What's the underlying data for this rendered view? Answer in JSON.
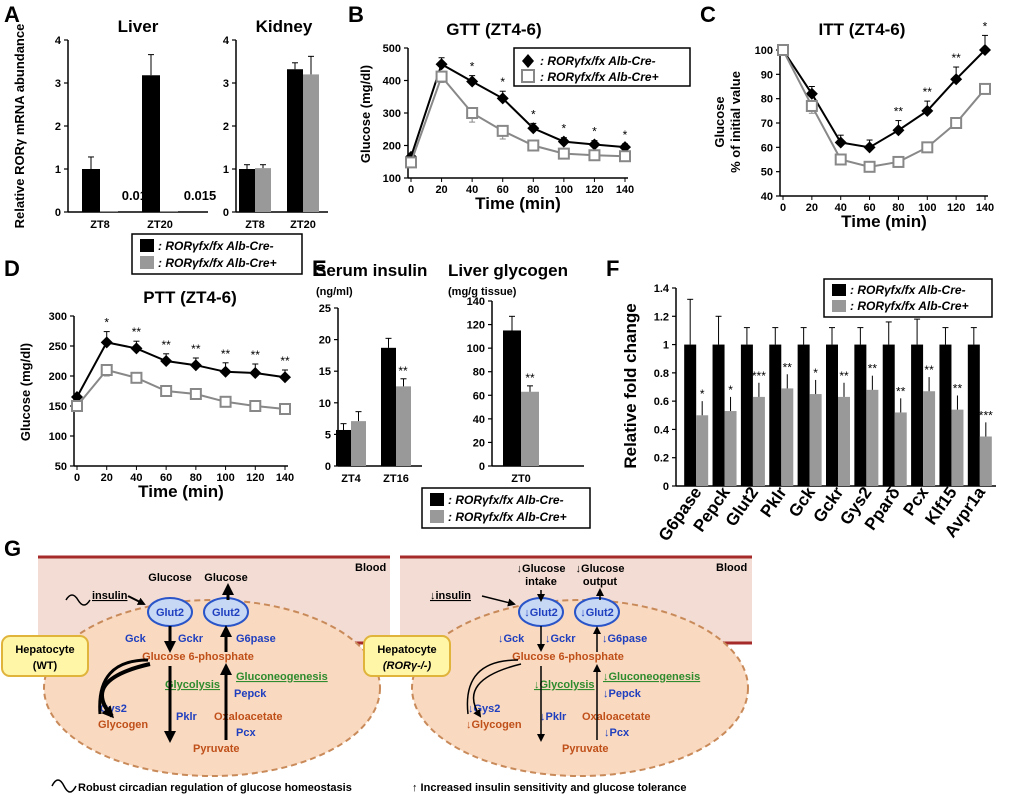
{
  "colors": {
    "wt": "#000000",
    "ko": "#999999",
    "blood": "#f3dcd3",
    "blood_line": "#a52a2a",
    "cell": "#f9d9bf",
    "glut2": "#c6d8f4",
    "hep_box": "#fff6a8",
    "blue": "#1f3fbf",
    "orange": "#c0501a",
    "green": "#2e8b2e"
  },
  "panel_labels": {
    "A": "A",
    "B": "B",
    "C": "C",
    "D": "D",
    "E": "E",
    "F": "F",
    "G": "G"
  },
  "legend": {
    "wt": ": RORγfx/fx Alb-Cre-",
    "ko": ": RORγfx/fx Alb-Cre+"
  },
  "chart_data": [
    {
      "id": "A-liver",
      "type": "bar",
      "title": "Liver",
      "ylabel": "Relative RORγ mRNA abundance",
      "categories": [
        "ZT8",
        "ZT20"
      ],
      "ylim": [
        0,
        4
      ],
      "yticks": [
        0,
        1,
        2,
        3,
        4
      ],
      "series": [
        {
          "name": ": RORγfx/fx Alb-Cre-",
          "values": [
            1.0,
            3.18
          ],
          "err": [
            0.28,
            0.48
          ]
        },
        {
          "name": ": RORγfx/fx Alb-Cre+",
          "values": [
            0.018,
            0.015
          ],
          "err": [
            0,
            0
          ]
        }
      ],
      "data_labels": [
        "0.018",
        "0.015"
      ]
    },
    {
      "id": "A-kidney",
      "type": "bar",
      "title": "Kidney",
      "categories": [
        "ZT8",
        "ZT20"
      ],
      "ylim": [
        0,
        4
      ],
      "yticks": [
        0,
        1,
        2,
        3,
        4
      ],
      "series": [
        {
          "name": ": RORγfx/fx Alb-Cre-",
          "values": [
            1.0,
            3.32
          ],
          "err": [
            0.1,
            0.15
          ]
        },
        {
          "name": ": RORγfx/fx Alb-Cre+",
          "values": [
            1.02,
            3.2
          ],
          "err": [
            0.08,
            0.42
          ]
        }
      ]
    },
    {
      "id": "B",
      "type": "line",
      "title": "GTT (ZT4-6)",
      "ylabel": "Glucose (mg/dl)",
      "xlabel": "Time (min)",
      "x": [
        0,
        20,
        40,
        60,
        80,
        100,
        120,
        140
      ],
      "ylim": [
        100,
        500
      ],
      "yticks": [
        100,
        200,
        300,
        400,
        500
      ],
      "xticks": [
        0,
        20,
        40,
        60,
        80,
        100,
        120,
        140
      ],
      "series": [
        {
          "name": ": RORγfx/fx Alb-Cre-",
          "values": [
            165,
            450,
            397,
            345,
            253,
            212,
            203,
            195
          ],
          "err": [
            8,
            20,
            18,
            22,
            15,
            12,
            12,
            10
          ]
        },
        {
          "name": ": RORγfx/fx Alb-Cre+",
          "values": [
            148,
            412,
            300,
            245,
            200,
            175,
            170,
            167
          ],
          "err": [
            8,
            18,
            28,
            25,
            15,
            10,
            10,
            10
          ]
        }
      ],
      "significance": [
        {
          "x": 40,
          "label": "*"
        },
        {
          "x": 60,
          "label": "*"
        },
        {
          "x": 80,
          "label": "*"
        },
        {
          "x": 100,
          "label": "*"
        },
        {
          "x": 120,
          "label": "*"
        },
        {
          "x": 140,
          "label": "*"
        }
      ]
    },
    {
      "id": "C",
      "type": "line",
      "title": "ITT (ZT4-6)",
      "ylabel": "Glucose % of initial value",
      "xlabel": "Time (min)",
      "x": [
        0,
        20,
        40,
        60,
        80,
        100,
        120,
        140
      ],
      "ylim": [
        40,
        100
      ],
      "yticks": [
        40,
        50,
        60,
        70,
        80,
        90,
        100
      ],
      "xticks": [
        0,
        20,
        40,
        60,
        80,
        100,
        120,
        140
      ],
      "series": [
        {
          "name": ": RORγfx/fx Alb-Cre-",
          "values": [
            100,
            82,
            62,
            60,
            67,
            75,
            88,
            100
          ],
          "err": [
            0,
            3,
            3,
            3,
            4,
            4,
            5,
            6
          ]
        },
        {
          "name": ": RORγfx/fx Alb-Cre+",
          "values": [
            100,
            77,
            55,
            52,
            54,
            60,
            70,
            84
          ],
          "err": [
            0,
            3,
            2,
            2,
            2,
            2,
            2,
            2
          ]
        }
      ],
      "significance": [
        {
          "x": 80,
          "label": "**"
        },
        {
          "x": 100,
          "label": "**"
        },
        {
          "x": 120,
          "label": "**"
        },
        {
          "x": 140,
          "label": "*"
        }
      ]
    },
    {
      "id": "D",
      "type": "line",
      "title": "PTT (ZT4-6)",
      "ylabel": "Glucose (mg/dl)",
      "xlabel": "Time (min)",
      "x": [
        0,
        20,
        40,
        60,
        80,
        100,
        120,
        140
      ],
      "ylim": [
        50,
        300
      ],
      "yticks": [
        50,
        100,
        150,
        200,
        250,
        300
      ],
      "xticks": [
        0,
        20,
        40,
        60,
        80,
        100,
        120,
        140
      ],
      "series": [
        {
          "name": ": RORγfx/fx Alb-Cre-",
          "values": [
            165,
            256,
            246,
            225,
            218,
            207,
            205,
            198
          ],
          "err": [
            5,
            18,
            12,
            12,
            12,
            15,
            15,
            12
          ]
        },
        {
          "name": ": RORγfx/fx Alb-Cre+",
          "values": [
            150,
            210,
            197,
            175,
            170,
            157,
            150,
            145
          ],
          "err": [
            8,
            10,
            8,
            8,
            8,
            5,
            5,
            5
          ]
        }
      ],
      "significance": [
        {
          "x": 20,
          "label": "*"
        },
        {
          "x": 40,
          "label": "**"
        },
        {
          "x": 60,
          "label": "**"
        },
        {
          "x": 80,
          "label": "**"
        },
        {
          "x": 100,
          "label": "**"
        },
        {
          "x": 120,
          "label": "**"
        },
        {
          "x": 140,
          "label": "**"
        }
      ]
    },
    {
      "id": "E-insulin",
      "type": "bar",
      "title": "Serum insulin",
      "unit": "(ng/ml)",
      "categories": [
        "ZT4",
        "ZT16"
      ],
      "ylim": [
        0,
        25
      ],
      "yticks": [
        0,
        5,
        10,
        15,
        20,
        25
      ],
      "series": [
        {
          "name": ": RORγfx/fx Alb-Cre-",
          "values": [
            5.7,
            18.7
          ],
          "err": [
            1.0,
            1.5
          ]
        },
        {
          "name": ": RORγfx/fx Alb-Cre+",
          "values": [
            7.1,
            12.6
          ],
          "err": [
            1.5,
            1.2
          ]
        }
      ],
      "significance": [
        {
          "category": "ZT16",
          "label": "**"
        }
      ]
    },
    {
      "id": "E-glycogen",
      "type": "bar",
      "title": "Liver glycogen",
      "unit": "(mg/g tissue)",
      "categories": [
        "ZT0"
      ],
      "ylim": [
        0,
        140
      ],
      "yticks": [
        0,
        20,
        40,
        60,
        80,
        100,
        120,
        140
      ],
      "series": [
        {
          "name": ": RORγfx/fx Alb-Cre-",
          "values": [
            115
          ],
          "err": [
            12
          ]
        },
        {
          "name": ": RORγfx/fx Alb-Cre+",
          "values": [
            63
          ],
          "err": [
            5
          ]
        }
      ],
      "significance": [
        {
          "category": "ZT0",
          "label": "**"
        }
      ]
    },
    {
      "id": "F",
      "type": "bar",
      "ylabel": "Relative fold change",
      "categories": [
        "G6pase",
        "Pepck",
        "Glut2",
        "Pklr",
        "Gck",
        "Gckr",
        "Gys2",
        "Pparδ",
        "Pcx",
        "Klf15",
        "Avpr1a"
      ],
      "ylim": [
        0,
        1.4
      ],
      "yticks": [
        0,
        0.2,
        0.4,
        0.6,
        0.8,
        1,
        1.2,
        1.4
      ],
      "series": [
        {
          "name": ": RORγfx/fx Alb-Cre-",
          "values": [
            1,
            1,
            1,
            1,
            1,
            1,
            1,
            1,
            1,
            1,
            1
          ],
          "err": [
            0.32,
            0.2,
            0.12,
            0.12,
            0.12,
            0.12,
            0.12,
            0.16,
            0.18,
            0.12,
            0.12
          ]
        },
        {
          "name": ": RORγfx/fx Alb-Cre+",
          "values": [
            0.5,
            0.53,
            0.63,
            0.69,
            0.65,
            0.63,
            0.68,
            0.52,
            0.67,
            0.54,
            0.35
          ]
        }
      ],
      "significance": [
        "*",
        "*",
        "***",
        "**",
        "*",
        "**",
        "**",
        "**",
        "**",
        "**",
        "***"
      ]
    }
  ],
  "diagram": {
    "blood": "Blood",
    "wt": {
      "cell": "Hepatocyte",
      "cell2": "(WT)",
      "glucose_in": "Glucose",
      "glucose_out": "Glucose",
      "insulin": "insulin",
      "glut2": "Glut2",
      "gck": "Gck",
      "gckr": "Gckr",
      "g6pase": "G6pase",
      "g6p": "Glucose 6-phosphate",
      "glycolysis": "Glycolysis",
      "gluconeogenesis": "Gluconeogenesis",
      "pepck": "Pepck",
      "gys2": "Gys2",
      "glycogen": "Glycogen",
      "pklr": "Pklr",
      "oxaloacetate": "Oxaloacetate",
      "pcx": "Pcx",
      "pyruvate": "Pyruvate"
    },
    "ko": {
      "cell": "Hepatocyte",
      "cell2": "(RORγ-/-)",
      "glucose_in": "↓Glucose",
      "glucose_in2": "intake",
      "glucose_out": "↓Glucose",
      "glucose_out2": "output",
      "insulin": "↓insulin",
      "glut2": "↓Glut2",
      "gck": "↓Gck",
      "gckr": "↓Gckr",
      "g6pase": "↓G6pase",
      "g6p": "Glucose 6-phosphate",
      "glycolysis": "↓Glycolysis",
      "gluconeogenesis": "↓Gluconeogenesis",
      "pepck": "↓Pepck",
      "gys2": "↓Gys2",
      "glycogen": "↓Glycogen",
      "pklr": "↓Pklr",
      "oxaloacetate": "Oxaloacetate",
      "pcx": "↓Pcx",
      "pyruvate": "Pyruvate"
    },
    "caption_left": "Robust circadian regulation of glucose homeostasis",
    "caption_right": "↑ Increased insulin sensitivity and glucose tolerance"
  }
}
